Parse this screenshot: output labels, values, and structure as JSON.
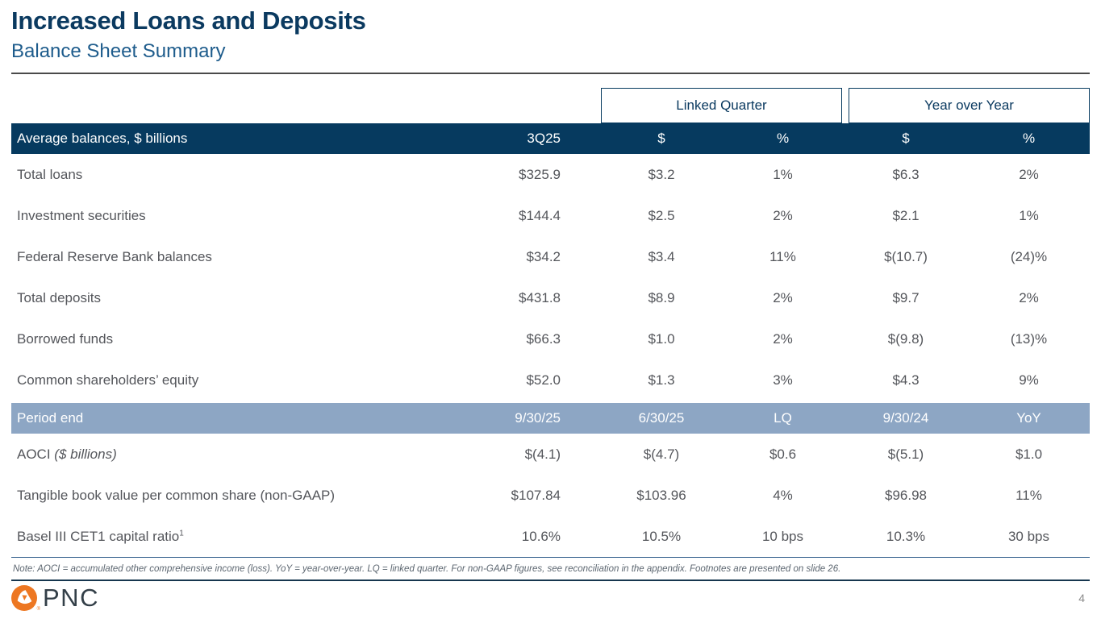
{
  "header": {
    "title": "Increased Loans and Deposits",
    "subtitle": "Balance Sheet Summary"
  },
  "table": {
    "group_headers": [
      {
        "label": "Linked Quarter"
      },
      {
        "label": "Year over Year"
      }
    ],
    "header": {
      "label": "Average balances, $ billions",
      "cols": [
        "3Q25",
        "$",
        "%",
        "$",
        "%"
      ]
    },
    "rows": [
      {
        "label": "Total loans",
        "values": [
          "$325.9",
          "$3.2",
          "1%",
          "$6.3",
          "2%"
        ]
      },
      {
        "label": "Investment securities",
        "values": [
          "$144.4",
          "$2.5",
          "2%",
          "$2.1",
          "1%"
        ]
      },
      {
        "label": "Federal Reserve Bank balances",
        "values": [
          "$34.2",
          "$3.4",
          "11%",
          "$(10.7)",
          "(24)%"
        ]
      },
      {
        "label": "Total deposits",
        "values": [
          "$431.8",
          "$8.9",
          "2%",
          "$9.7",
          "2%"
        ]
      },
      {
        "label": "Borrowed funds",
        "values": [
          "$66.3",
          "$1.0",
          "2%",
          "$(9.8)",
          "(13)%"
        ]
      },
      {
        "label": "Common shareholders’ equity",
        "values": [
          "$52.0",
          "$1.3",
          "3%",
          "$4.3",
          "9%"
        ]
      }
    ],
    "period_row": {
      "label": "Period end",
      "values": [
        "9/30/25",
        "6/30/25",
        "LQ",
        "9/30/24",
        "YoY"
      ]
    },
    "bottom_rows": [
      {
        "label": "AOCI",
        "label_italic": " ($ billions)",
        "values": [
          "$(4.1)",
          "$(4.7)",
          "$0.6",
          "$(5.1)",
          "$1.0"
        ]
      },
      {
        "label": "Tangible book value per common share (non-GAAP)",
        "values": [
          "$107.84",
          "$103.96",
          "4%",
          "$96.98",
          "11%"
        ]
      },
      {
        "label": "Basel III CET1 capital ratio",
        "superscript": "1",
        "values": [
          "10.6%",
          "10.5%",
          "10 bps",
          "10.3%",
          "30 bps"
        ]
      }
    ]
  },
  "note": "Note: AOCI = accumulated other comprehensive income (loss). YoY = year-over-year. LQ = linked quarter. For non-GAAP figures, see reconciliation in the appendix. Footnotes are presented on slide 26.",
  "footer": {
    "logo_text": "PNC",
    "registered_mark": "®",
    "page_number": "4"
  },
  "colors": {
    "navy_dark": "#063a5f",
    "period_blue": "#8da6c4",
    "title_navy": "#0b3a60",
    "subtitle_blue": "#1e5c8c",
    "body_gray": "#54565b",
    "pnc_orange": "#ed7722",
    "pnc_slate": "#333f48"
  }
}
